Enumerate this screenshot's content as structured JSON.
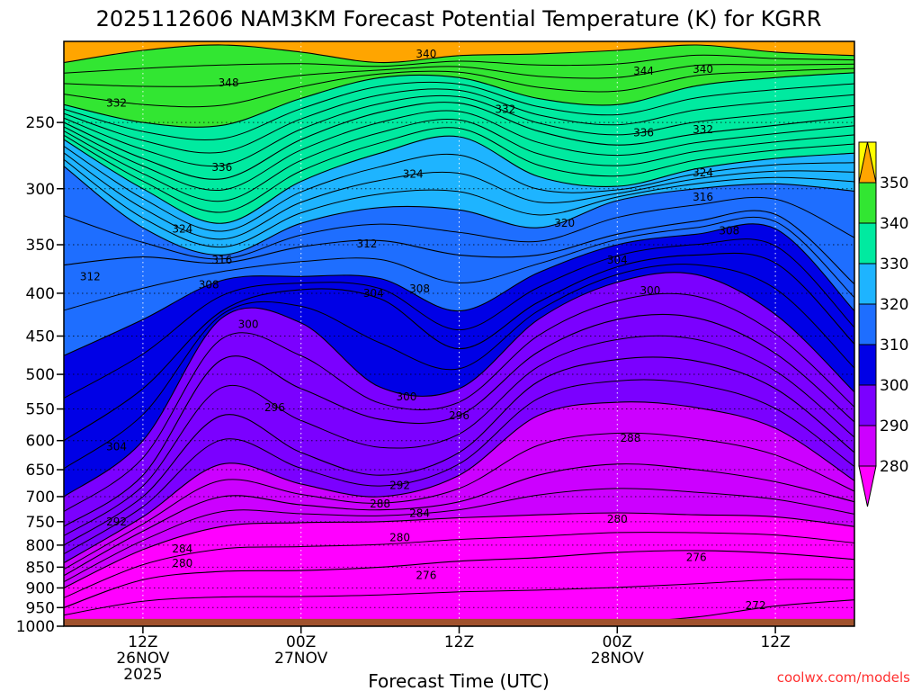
{
  "title": "2025112606 NAM3KM Forecast Potential Temperature (K) for KGRR",
  "credit": "coolwx.com/models",
  "chart_data": {
    "type": "contour",
    "title": "2025112606 NAM3KM Forecast Potential Temperature (K) for KGRR",
    "xlabel": "Forecast Time (UTC)",
    "ylabel": "",
    "x_range_hours": [
      0,
      60
    ],
    "y_range_hpa": [
      1000,
      200
    ],
    "y_scale": "log",
    "y_ticks": [
      250,
      300,
      350,
      400,
      450,
      500,
      550,
      600,
      650,
      700,
      750,
      800,
      850,
      900,
      950,
      1000
    ],
    "x_ticks": [
      {
        "hour": 6,
        "lines": [
          "12Z",
          "26NOV",
          "2025"
        ]
      },
      {
        "hour": 18,
        "lines": [
          "00Z",
          "27NOV"
        ]
      },
      {
        "hour": 30,
        "lines": [
          "12Z"
        ]
      },
      {
        "hour": 42,
        "lines": [
          "00Z",
          "28NOV"
        ]
      },
      {
        "hour": 54,
        "lines": [
          "12Z"
        ]
      }
    ],
    "grid": true,
    "colorbar": {
      "position": "right",
      "levels": [
        280,
        290,
        300,
        310,
        320,
        330,
        340,
        350
      ],
      "colors": [
        "#cc00ff",
        "#7b00ff",
        "#0000e6",
        "#1e6eff",
        "#1eb4ff",
        "#00eaa0",
        "#32e632",
        "#ffff00"
      ],
      "under_color": "#ff00ff",
      "over_color": "#ffa500"
    },
    "contour_interval_K": 2,
    "terrain_color": "#a0522d",
    "surface_pressure_hpa": 980,
    "series": [
      {
        "value": 348,
        "x": [
          0,
          6,
          12,
          18,
          24,
          30,
          36,
          42,
          48,
          54,
          60
        ],
        "p": [
          212,
          205,
          202,
          206,
          212,
          208,
          207,
          205,
          202,
          206,
          208
        ]
      },
      {
        "value": 340,
        "x": [
          0,
          6,
          12,
          18,
          24,
          30,
          36,
          42,
          48,
          54,
          60
        ],
        "p": [
          238,
          250,
          252,
          234,
          221,
          221,
          234,
          238,
          226,
          221,
          218
        ]
      },
      {
        "value": 332,
        "x": [
          0,
          6,
          12,
          18,
          24,
          30,
          36,
          42,
          48,
          54,
          60
        ],
        "p": [
          250,
          276,
          292,
          262,
          243,
          237,
          256,
          266,
          258,
          252,
          246
        ]
      },
      {
        "value": 324,
        "x": [
          0,
          6,
          12,
          18,
          24,
          30,
          36,
          42,
          48,
          54,
          60
        ],
        "p": [
          262,
          300,
          330,
          294,
          272,
          260,
          290,
          298,
          284,
          276,
          272
        ]
      },
      {
        "value": 316,
        "x": [
          0,
          6,
          12,
          18,
          24,
          30,
          36,
          42,
          48,
          54,
          60
        ],
        "p": [
          282,
          334,
          360,
          330,
          316,
          318,
          334,
          310,
          300,
          296,
          302
        ]
      },
      {
        "value": 312,
        "x": [
          0,
          6,
          12,
          18,
          24,
          30,
          36,
          42,
          48,
          54,
          60
        ],
        "p": [
          370,
          362,
          368,
          352,
          346,
          360,
          360,
          340,
          328,
          322,
          390
        ]
      },
      {
        "value": 308,
        "x": [
          0,
          6,
          12,
          18,
          24,
          30,
          36,
          42,
          48,
          54,
          60
        ],
        "p": [
          475,
          430,
          386,
          382,
          384,
          420,
          378,
          350,
          340,
          335,
          420
        ]
      },
      {
        "value": 304,
        "x": [
          0,
          6,
          12,
          18,
          24,
          30,
          36,
          42,
          48,
          54,
          60
        ],
        "p": [
          600,
          520,
          420,
          396,
          406,
          466,
          410,
          372,
          360,
          368,
          460
        ]
      },
      {
        "value": 300,
        "x": [
          0,
          6,
          12,
          18,
          24,
          30,
          36,
          42,
          48,
          54,
          60
        ],
        "p": [
          700,
          600,
          428,
          434,
          518,
          520,
          430,
          388,
          380,
          424,
          525
        ]
      },
      {
        "value": 296,
        "x": [
          0,
          6,
          12,
          18,
          24,
          30,
          36,
          42,
          48,
          54,
          60
        ],
        "p": [
          760,
          660,
          480,
          520,
          566,
          560,
          470,
          430,
          428,
          472,
          570
        ]
      },
      {
        "value": 292,
        "x": [
          0,
          6,
          12,
          18,
          24,
          30,
          36,
          42,
          48,
          54,
          60
        ],
        "p": [
          800,
          700,
          560,
          620,
          660,
          620,
          510,
          480,
          482,
          520,
          620
        ]
      },
      {
        "value": 288,
        "x": [
          0,
          6,
          12,
          18,
          24,
          30,
          36,
          42,
          48,
          54,
          60
        ],
        "p": [
          840,
          740,
          640,
          676,
          700,
          660,
          560,
          540,
          548,
          580,
          670
        ]
      },
      {
        "value": 284,
        "x": [
          0,
          6,
          12,
          18,
          24,
          30,
          36,
          42,
          48,
          54,
          60
        ],
        "p": [
          870,
          770,
          700,
          716,
          726,
          710,
          660,
          640,
          650,
          672,
          710
        ]
      },
      {
        "value": 280,
        "x": [
          0,
          6,
          12,
          18,
          24,
          30,
          36,
          42,
          48,
          54,
          60
        ],
        "p": [
          900,
          810,
          760,
          752,
          750,
          742,
          736,
          732,
          736,
          740,
          760
        ]
      },
      {
        "value": 276,
        "x": [
          0,
          6,
          12,
          18,
          24,
          30,
          36,
          42,
          48,
          54,
          60
        ],
        "p": [
          950,
          880,
          860,
          858,
          850,
          836,
          828,
          816,
          812,
          818,
          832
        ]
      },
      {
        "value": 272,
        "x": [
          0,
          6,
          12,
          18,
          24,
          30,
          36,
          42,
          48,
          54,
          60
        ],
        "p": [
          990,
          990,
          990,
          990,
          990,
          990,
          990,
          990,
          975,
          946,
          930
        ]
      }
    ],
    "contour_labels": [
      {
        "text": "348",
        "x": 12.5,
        "p": 224
      },
      {
        "text": "340",
        "x": 27.5,
        "p": 207
      },
      {
        "text": "344",
        "x": 44.0,
        "p": 217
      },
      {
        "text": "340",
        "x": 48.5,
        "p": 216
      },
      {
        "text": "332",
        "x": 4.0,
        "p": 237
      },
      {
        "text": "332",
        "x": 33.5,
        "p": 241
      },
      {
        "text": "332",
        "x": 48.5,
        "p": 255
      },
      {
        "text": "336",
        "x": 44.0,
        "p": 257
      },
      {
        "text": "336",
        "x": 12.0,
        "p": 283
      },
      {
        "text": "324",
        "x": 26.5,
        "p": 288
      },
      {
        "text": "324",
        "x": 48.5,
        "p": 287
      },
      {
        "text": "316",
        "x": 48.5,
        "p": 307
      },
      {
        "text": "320",
        "x": 38.0,
        "p": 330
      },
      {
        "text": "324",
        "x": 9.0,
        "p": 335
      },
      {
        "text": "312",
        "x": 23.0,
        "p": 349
      },
      {
        "text": "308",
        "x": 50.5,
        "p": 337
      },
      {
        "text": "316",
        "x": 12.0,
        "p": 365
      },
      {
        "text": "304",
        "x": 42.0,
        "p": 365
      },
      {
        "text": "312",
        "x": 2.0,
        "p": 382
      },
      {
        "text": "308",
        "x": 11.0,
        "p": 391
      },
      {
        "text": "304",
        "x": 23.5,
        "p": 400
      },
      {
        "text": "308",
        "x": 27.0,
        "p": 395
      },
      {
        "text": "300",
        "x": 44.5,
        "p": 397
      },
      {
        "text": "300",
        "x": 14.0,
        "p": 436
      },
      {
        "text": "300",
        "x": 26.0,
        "p": 532
      },
      {
        "text": "296",
        "x": 16.0,
        "p": 548
      },
      {
        "text": "296",
        "x": 30.0,
        "p": 560
      },
      {
        "text": "288",
        "x": 43.0,
        "p": 596
      },
      {
        "text": "304",
        "x": 4.0,
        "p": 610
      },
      {
        "text": "292",
        "x": 25.5,
        "p": 679
      },
      {
        "text": "288",
        "x": 24.0,
        "p": 714
      },
      {
        "text": "284",
        "x": 27.0,
        "p": 733
      },
      {
        "text": "280",
        "x": 42.0,
        "p": 745
      },
      {
        "text": "292",
        "x": 4.0,
        "p": 750
      },
      {
        "text": "280",
        "x": 25.5,
        "p": 784
      },
      {
        "text": "284",
        "x": 9.0,
        "p": 808
      },
      {
        "text": "276",
        "x": 48.0,
        "p": 827
      },
      {
        "text": "280",
        "x": 9.0,
        "p": 841
      },
      {
        "text": "276",
        "x": 27.5,
        "p": 869
      },
      {
        "text": "272",
        "x": 52.5,
        "p": 945
      }
    ]
  }
}
